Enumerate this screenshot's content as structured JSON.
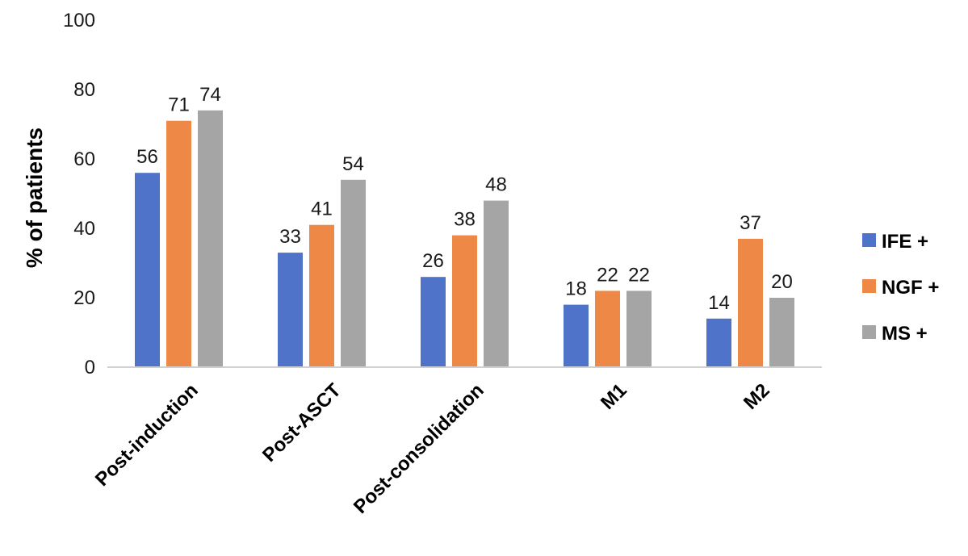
{
  "chart_data": {
    "type": "bar",
    "title": "",
    "xlabel": "",
    "ylabel": "% of patients",
    "ylim": [
      0,
      100
    ],
    "yticks": [
      0,
      20,
      40,
      60,
      80,
      100
    ],
    "grid": false,
    "legend_position": "right",
    "categories": [
      "Post-induction",
      "Post-ASCT",
      "Post-consolidation",
      "M1",
      "M2"
    ],
    "series": [
      {
        "name": "IFE +",
        "color": "#4f73c8",
        "values": [
          56,
          33,
          26,
          18,
          14
        ]
      },
      {
        "name": "NGF +",
        "color": "#ed8847",
        "values": [
          71,
          41,
          38,
          22,
          37
        ]
      },
      {
        "name": "MS +",
        "color": "#a5a5a5",
        "values": [
          74,
          54,
          48,
          22,
          20
        ]
      }
    ]
  }
}
